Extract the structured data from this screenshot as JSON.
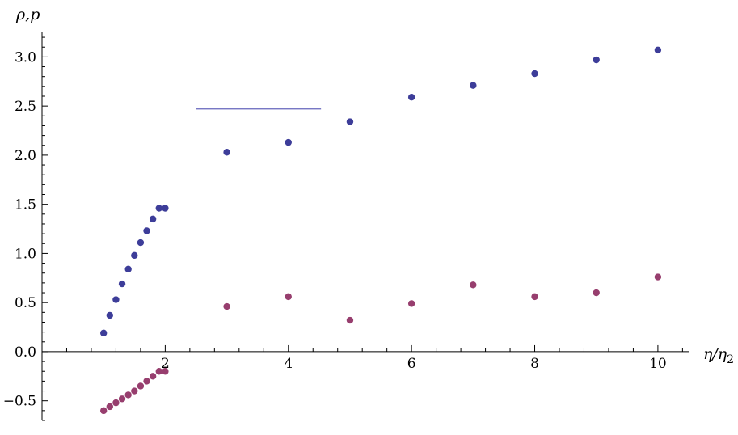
{
  "chart_data": {
    "type": "scatter",
    "title": "",
    "xlabel": "η/η",
    "xlabel_sub": "2",
    "ylabel": "ρ,p",
    "xlim": [
      0,
      10.5
    ],
    "ylim": [
      -0.7,
      3.25
    ],
    "grid": false,
    "x_ticks": [
      2,
      4,
      6,
      8,
      10
    ],
    "x_tick_labels": [
      "2",
      "4",
      "6",
      "8",
      "10"
    ],
    "y_ticks": [
      -0.5,
      0.0,
      0.5,
      1.0,
      1.5,
      2.0,
      2.5,
      3.0
    ],
    "y_tick_labels": [
      "−0.5",
      "0.0",
      "0.5",
      "1.0",
      "1.5",
      "2.0",
      "2.5",
      "3.0"
    ],
    "series": [
      {
        "color": "#3d3d99",
        "x": [
          1.0,
          1.1,
          1.2,
          1.3,
          1.4,
          1.5,
          1.6,
          1.7,
          1.8,
          1.9,
          2.0,
          3,
          4,
          5,
          6,
          7,
          8,
          9,
          10
        ],
        "y": [
          0.19,
          0.37,
          0.53,
          0.69,
          0.84,
          0.98,
          1.11,
          1.23,
          1.35,
          1.46,
          1.46,
          2.03,
          2.13,
          2.34,
          2.59,
          2.71,
          2.83,
          2.97,
          3.07
        ]
      },
      {
        "color": "#973e6e",
        "x": [
          1.0,
          1.1,
          1.2,
          1.3,
          1.4,
          1.5,
          1.6,
          1.7,
          1.8,
          1.9,
          2.0,
          3,
          4,
          5,
          6,
          7,
          8,
          9,
          10
        ],
        "y": [
          -0.6,
          -0.56,
          -0.52,
          -0.48,
          -0.44,
          -0.4,
          -0.35,
          -0.3,
          -0.25,
          -0.2,
          -0.2,
          0.46,
          0.56,
          0.32,
          0.49,
          0.68,
          0.56,
          0.6,
          0.76
        ]
      }
    ],
    "hline": {
      "color": "#6464bb",
      "y": 2.47,
      "x_from": 2.5,
      "x_to": 4.53
    }
  }
}
